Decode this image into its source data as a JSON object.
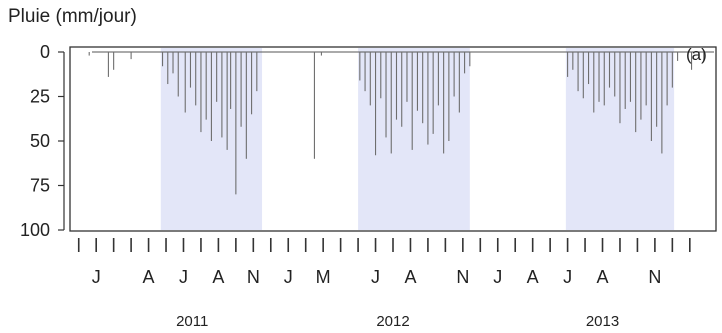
{
  "chart_data": {
    "type": "bar",
    "ylabel": "Pluie (mm/jour)",
    "panel_label": "(a)",
    "orientation": "inverted-y",
    "ylim": [
      0,
      100
    ],
    "yticks": [
      "0",
      "25",
      "50",
      "75",
      "100"
    ],
    "shaded_color": "#e3e6f8",
    "bar_color": "#6e6e6e",
    "month_ticks": [
      "J",
      "A",
      "J",
      "A",
      "N",
      "J",
      "M",
      "J",
      "A",
      "N",
      "J",
      "A",
      "J",
      "A",
      "N"
    ],
    "month_tick_positions": [
      1.5,
      4.5,
      6.5,
      8.5,
      10.5,
      12.5,
      14.5,
      17.5,
      19.5,
      22.5,
      24.5,
      26.5,
      28.5,
      30.5,
      33.5
    ],
    "years": [
      {
        "label": "2011",
        "position": 7.0
      },
      {
        "label": "2012",
        "position": 18.5
      },
      {
        "label": "2013",
        "position": 30.5
      }
    ],
    "xlim": [
      0,
      37
    ],
    "shaded_periods": [
      {
        "start": 5.2,
        "end": 11.0
      },
      {
        "start": 16.5,
        "end": 22.9
      },
      {
        "start": 28.4,
        "end": 34.6
      }
    ],
    "series": [
      {
        "x": [
          1.1,
          2.2,
          2.5,
          3.5,
          5.3,
          5.6,
          5.9,
          6.2,
          6.6,
          6.9,
          7.2,
          7.5,
          7.8,
          8.1,
          8.4,
          8.7,
          9.0,
          9.2,
          9.5,
          9.8,
          10.1,
          10.4,
          10.7,
          14.0,
          14.4,
          16.6,
          16.9,
          17.2,
          17.5,
          17.8,
          18.1,
          18.4,
          18.7,
          19.0,
          19.3,
          19.6,
          19.9,
          20.2,
          20.5,
          20.8,
          21.1,
          21.4,
          21.7,
          22.0,
          22.3,
          22.6,
          22.9,
          28.5,
          28.8,
          29.1,
          29.4,
          29.7,
          30.0,
          30.3,
          30.6,
          30.9,
          31.2,
          31.5,
          31.8,
          32.1,
          32.4,
          32.7,
          33.0,
          33.3,
          33.6,
          33.9,
          34.2,
          34.5,
          34.8,
          35.6,
          36.3
        ],
        "values": [
          2,
          14,
          10,
          4,
          8,
          18,
          12,
          25,
          34,
          20,
          30,
          45,
          38,
          50,
          28,
          48,
          55,
          32,
          80,
          42,
          60,
          35,
          22,
          60,
          2,
          16,
          22,
          30,
          58,
          26,
          48,
          57,
          38,
          42,
          28,
          55,
          33,
          40,
          52,
          46,
          30,
          57,
          50,
          25,
          34,
          12,
          8,
          14,
          10,
          22,
          26,
          18,
          34,
          28,
          30,
          20,
          25,
          40,
          32,
          28,
          45,
          38,
          30,
          50,
          42,
          57,
          30,
          20,
          5,
          10,
          5
        ]
      }
    ]
  }
}
